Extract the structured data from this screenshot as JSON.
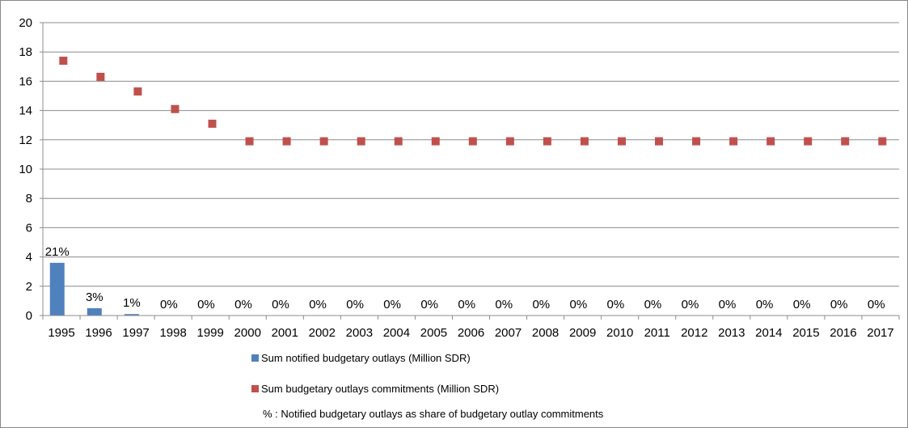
{
  "chart_data": {
    "type": "bar",
    "title": "",
    "xlabel": "",
    "ylabel": "",
    "ylim": [
      0,
      20
    ],
    "yticks": [
      0,
      2,
      4,
      6,
      8,
      10,
      12,
      14,
      16,
      18,
      20
    ],
    "grid": true,
    "legend_position": "bottom",
    "categories": [
      "1995",
      "1996",
      "1997",
      "1998",
      "1999",
      "2000",
      "2001",
      "2002",
      "2003",
      "2004",
      "2005",
      "2006",
      "2007",
      "2008",
      "2009",
      "2010",
      "2011",
      "2012",
      "2013",
      "2014",
      "2015",
      "2016",
      "2017"
    ],
    "series": [
      {
        "name": "Sum notified budgetary outlays (Million SDR)",
        "mark": "bar",
        "color": "#4F81BD",
        "values": [
          3.6,
          0.5,
          0.1,
          0,
          0,
          0,
          0,
          0,
          0,
          0,
          0,
          0,
          0,
          0,
          0,
          0,
          0,
          0,
          0,
          0,
          0,
          0,
          0
        ]
      },
      {
        "name": "Sum budgetary outlays commitments (Million SDR)",
        "mark": "square",
        "color": "#C0504D",
        "values": [
          17.4,
          16.3,
          15.3,
          14.1,
          13.1,
          11.9,
          11.9,
          11.9,
          11.9,
          11.9,
          11.9,
          11.9,
          11.9,
          11.9,
          11.9,
          11.9,
          11.9,
          11.9,
          11.9,
          11.9,
          11.9,
          11.9,
          11.9
        ]
      }
    ],
    "data_labels": [
      "21%",
      "3%",
      "1%",
      "0%",
      "0%",
      "0%",
      "0%",
      "0%",
      "0%",
      "0%",
      "0%",
      "0%",
      "0%",
      "0%",
      "0%",
      "0%",
      "0%",
      "0%",
      "0%",
      "0%",
      "0%",
      "0%",
      "0%"
    ],
    "legend_note": "% : Notified budgetary outlays as share of budgetary outlay commitments"
  }
}
